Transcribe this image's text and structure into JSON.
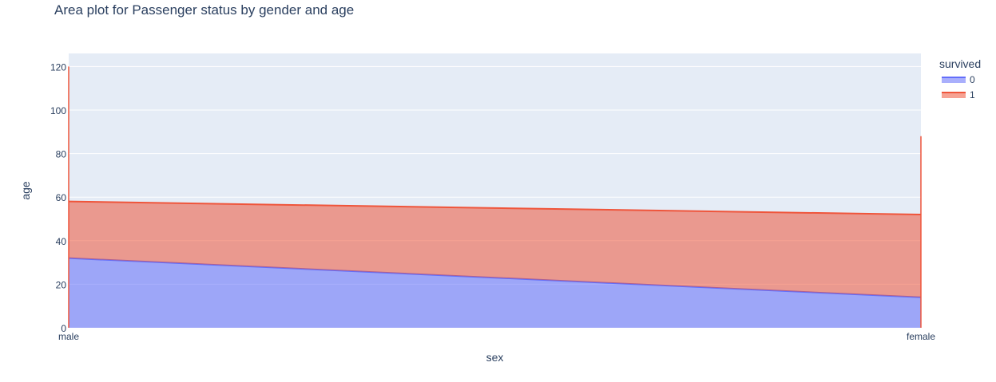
{
  "chart_data": {
    "type": "area",
    "title": "Area plot for Passenger status by gender and age",
    "xlabel": "sex",
    "ylabel": "age",
    "categories": [
      "male",
      "female"
    ],
    "ylim": [
      0,
      126
    ],
    "yticks": [
      0,
      20,
      40,
      60,
      80,
      100,
      120
    ],
    "grid": true,
    "stacked": true,
    "legend": {
      "title": "survived",
      "position": "top-right"
    },
    "series": [
      {
        "name": "0",
        "values": [
          32,
          14
        ],
        "color": "#636efa"
      },
      {
        "name": "1",
        "values": [
          26,
          38
        ],
        "color": "#ef553b"
      }
    ],
    "spikes": [
      {
        "category": "male",
        "series": "1",
        "top": 120
      },
      {
        "category": "female",
        "series": "1",
        "top": 88
      }
    ],
    "colors": {
      "plot_bg": "#e5ecf6",
      "grid": "#ffffff",
      "text": "#2a3f5f"
    }
  }
}
